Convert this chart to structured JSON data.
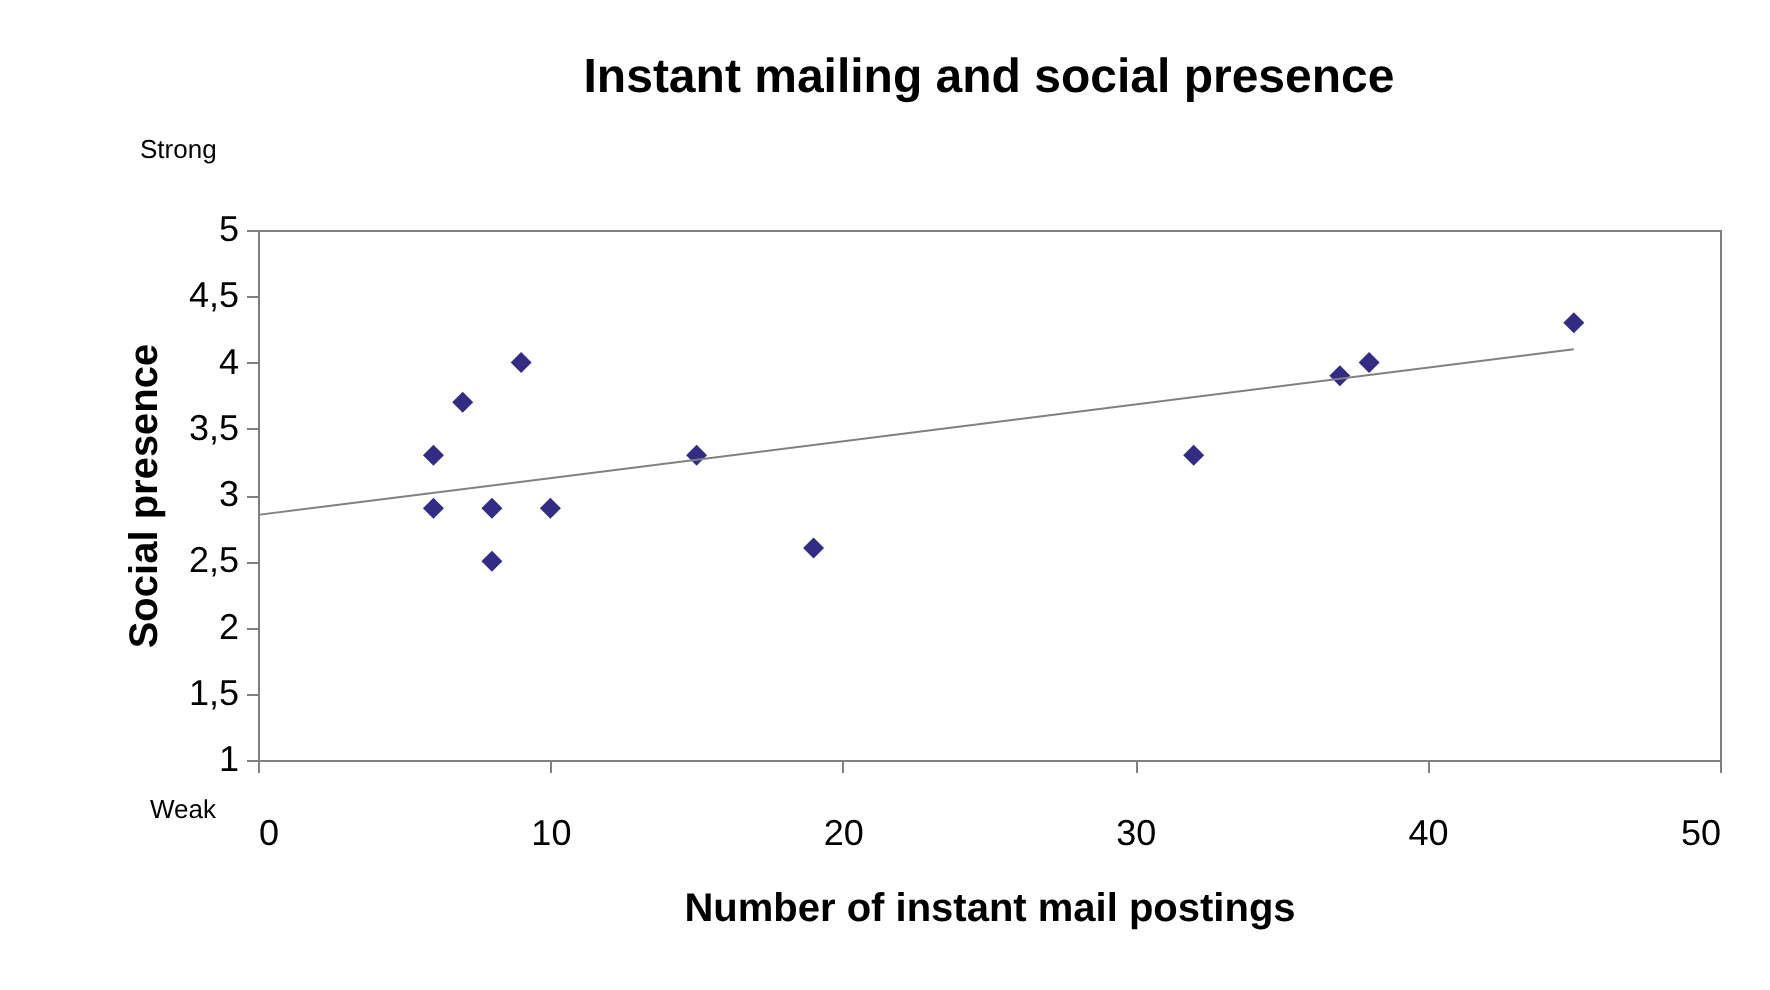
{
  "chart_data": {
    "type": "scatter",
    "title": "Instant mailing and social presence",
    "xlabel": "Number of instant mail postings",
    "ylabel": "Social presence",
    "annotations": [
      "Strong",
      "Weak"
    ],
    "xlim": [
      0,
      50
    ],
    "xticks": [
      0,
      10,
      20,
      30,
      40,
      50
    ],
    "ylim": [
      1,
      5
    ],
    "yticks": [
      1,
      {
        "value": 1.5,
        "label": "1,5"
      },
      2,
      {
        "value": 2.5,
        "label": "2,5"
      },
      3,
      {
        "value": 3.5,
        "label": "3,5"
      },
      4,
      {
        "value": 4.5,
        "label": "4,5"
      },
      5
    ],
    "grid": false,
    "series": [
      {
        "type": "scatter",
        "marker": "diamond",
        "color": "#332c85",
        "x": [
          6,
          6,
          7,
          9,
          8,
          8,
          10,
          15,
          19,
          32,
          37,
          38,
          45
        ],
        "values": [
          3.3,
          2.9,
          3.7,
          4.0,
          2.9,
          2.5,
          2.9,
          3.3,
          2.6,
          3.3,
          3.9,
          4.0,
          4.3
        ]
      },
      {
        "type": "line",
        "marker": "none",
        "color": "#808080",
        "line_style": "solid",
        "x": [
          0,
          45
        ],
        "values": [
          2.85,
          4.1
        ]
      }
    ]
  }
}
